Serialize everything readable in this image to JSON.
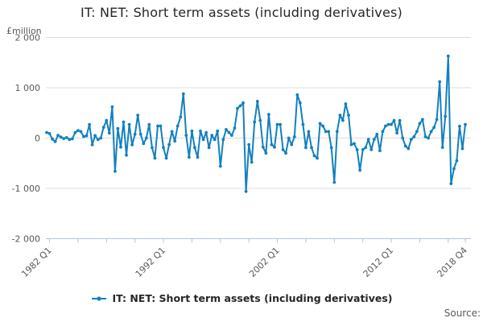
{
  "page": {
    "title": "IT: NET: Short term assets (including derivatives)",
    "source_label": "Source:"
  },
  "legend": {
    "series_label": "IT: NET: Short term assets (including derivatives)"
  },
  "colors": {
    "line": "#1380be",
    "grid": "#dcdcdc",
    "axis": "#b3c3dc",
    "tick_text": "#595959",
    "title_text": "#262626"
  },
  "chart_data": {
    "type": "line",
    "title": "IT: NET: Short term assets (including derivatives)",
    "xlabel": "",
    "ylabel": "£million",
    "ylim": [
      -2000,
      2000
    ],
    "grid": "horizontal",
    "legend_position": "bottom",
    "markers": "circle",
    "y_ticks": [
      {
        "value": 2000,
        "label": "2 000"
      },
      {
        "value": 1000,
        "label": "1 000"
      },
      {
        "value": 0,
        "label": "0"
      },
      {
        "value": -1000,
        "label": "-1 000"
      },
      {
        "value": -2000,
        "label": "-2 000"
      }
    ],
    "x_unit": "quarter",
    "x_start": "1982 Q1",
    "x_end": "2018 Q4",
    "x_minor_ticks_q": [
      1,
      11,
      21,
      31,
      41,
      51,
      61,
      71,
      81,
      91,
      101,
      111,
      121,
      131,
      141,
      147
    ],
    "x_labeled_ticks": [
      {
        "q": 1,
        "label": "1982 Q1"
      },
      {
        "q": 41,
        "label": "1992 Q1"
      },
      {
        "q": 81,
        "label": "2002 Q1"
      },
      {
        "q": 121,
        "label": "2012 Q1"
      },
      {
        "q": 147,
        "label": "2018 Q4"
      }
    ],
    "series": [
      {
        "name": "IT: NET: Short term assets (including derivatives)",
        "color": "#1380be",
        "values": [
          110,
          90,
          -20,
          -70,
          55,
          20,
          -10,
          10,
          -30,
          -15,
          110,
          150,
          130,
          30,
          45,
          270,
          -135,
          50,
          -30,
          0,
          215,
          350,
          100,
          620,
          -660,
          190,
          -180,
          320,
          -340,
          270,
          -135,
          75,
          455,
          75,
          -110,
          0,
          270,
          -190,
          -400,
          240,
          240,
          -190,
          -400,
          -130,
          130,
          -60,
          240,
          420,
          880,
          55,
          -380,
          140,
          -190,
          -380,
          140,
          -30,
          110,
          -190,
          55,
          -30,
          140,
          -560,
          -30,
          170,
          110,
          55,
          200,
          590,
          640,
          700,
          -1060,
          -130,
          -480,
          320,
          730,
          350,
          -180,
          -300,
          470,
          -130,
          -180,
          270,
          270,
          -230,
          -300,
          0,
          -130,
          25,
          860,
          700,
          270,
          -190,
          130,
          -190,
          -350,
          -400,
          290,
          240,
          130,
          130,
          -190,
          -880,
          130,
          455,
          350,
          680,
          455,
          -130,
          -110,
          -230,
          -640,
          -230,
          -190,
          -25,
          -230,
          -25,
          75,
          -250,
          130,
          240,
          270,
          270,
          350,
          100,
          350,
          0,
          -160,
          -210,
          -25,
          25,
          130,
          290,
          370,
          25,
          0,
          130,
          210,
          370,
          1120,
          -185,
          430,
          1630,
          -905,
          -610,
          -450,
          235,
          -210,
          270
        ]
      }
    ]
  }
}
